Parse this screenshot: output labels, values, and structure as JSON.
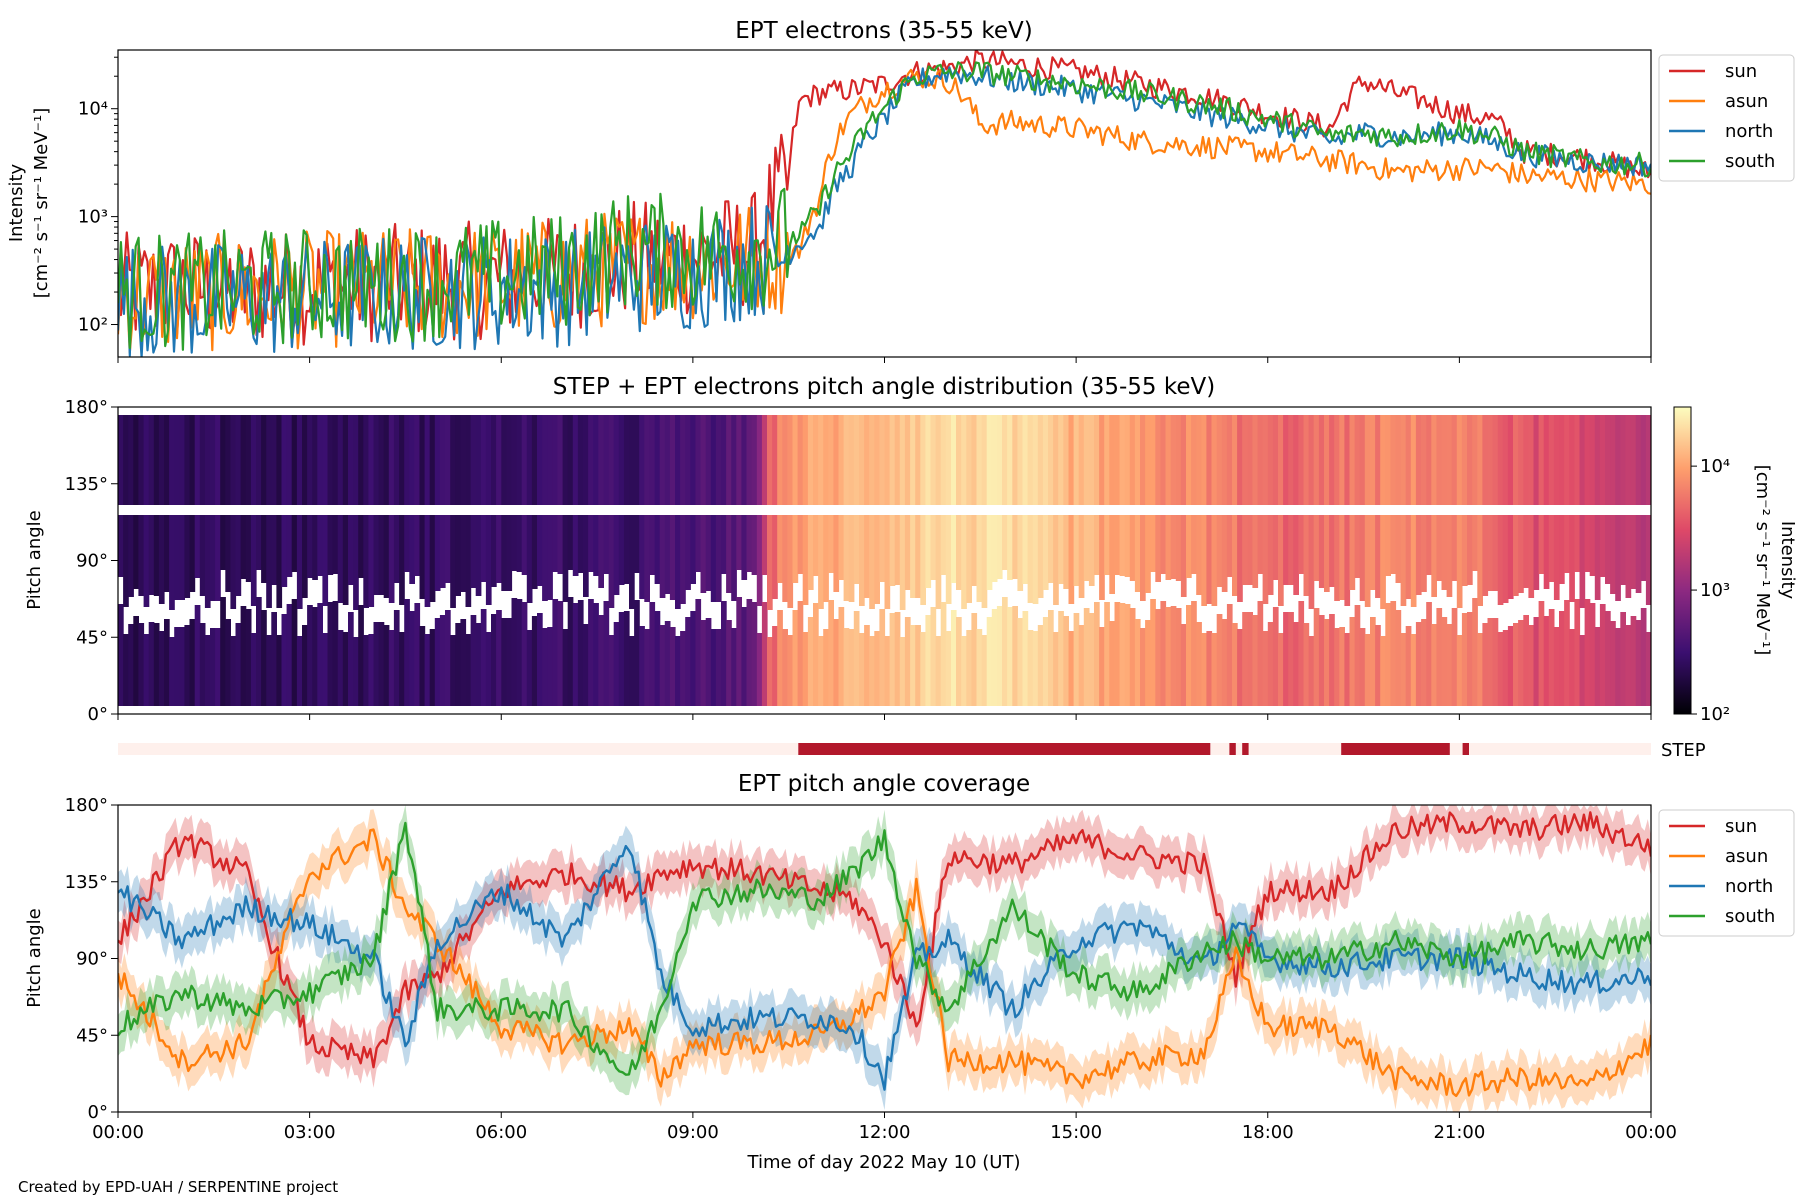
{
  "chart_data": [
    {
      "type": "line",
      "title": "EPT electrons (35-55 keV)",
      "ylabel_line1": "Intensity",
      "ylabel_line2": "[cm⁻² s⁻¹ sr⁻¹ MeV⁻¹]",
      "yscale": "log",
      "ylim": [
        50,
        35000
      ],
      "xlim_hours": [
        0,
        24
      ],
      "y_ticks": [
        "10²",
        "10³",
        "10⁴"
      ],
      "legend_position": "outside-right-top",
      "x_hours": [
        0,
        1,
        2,
        3,
        4,
        5,
        6,
        7,
        8,
        9,
        10,
        10.5,
        10.7,
        11,
        11.5,
        12,
        12.5,
        13,
        13.5,
        14,
        15,
        16,
        17,
        18,
        19,
        19.5,
        20,
        21,
        21.5,
        22,
        23,
        24
      ],
      "series": [
        {
          "name": "sun",
          "color": "#d62728",
          "values": [
            200,
            220,
            210,
            230,
            240,
            250,
            260,
            300,
            400,
            420,
            500,
            2000,
            12000,
            14000,
            15000,
            17000,
            22000,
            24000,
            28000,
            26000,
            22000,
            17000,
            13000,
            9000,
            6500,
            18000,
            14000,
            9000,
            8000,
            4000,
            3500,
            2500
          ]
        },
        {
          "name": "asun",
          "color": "#ff7f0e",
          "values": [
            180,
            190,
            200,
            210,
            220,
            230,
            250,
            280,
            350,
            380,
            400,
            450,
            500,
            1500,
            9000,
            15000,
            20000,
            18000,
            7000,
            7500,
            6500,
            5000,
            4500,
            4000,
            3300,
            3000,
            2600,
            2800,
            2800,
            2400,
            2200,
            2000
          ]
        },
        {
          "name": "north",
          "color": "#1f77b4",
          "values": [
            170,
            160,
            170,
            180,
            190,
            200,
            210,
            220,
            280,
            300,
            400,
            450,
            600,
            800,
            3000,
            8000,
            18000,
            22000,
            20000,
            18000,
            15000,
            12000,
            9000,
            7000,
            5000,
            6000,
            5500,
            6000,
            5000,
            3800,
            3200,
            3000
          ]
        },
        {
          "name": "south",
          "color": "#2ca02c",
          "values": [
            210,
            200,
            220,
            230,
            240,
            250,
            280,
            320,
            500,
            450,
            480,
            600,
            700,
            1200,
            4000,
            10000,
            20000,
            22000,
            22000,
            20000,
            17000,
            14000,
            11000,
            8000,
            5500,
            6000,
            5500,
            6500,
            5500,
            4000,
            3200,
            3000
          ]
        }
      ]
    },
    {
      "type": "heatmap",
      "title": "STEP + EPT electrons pitch angle distribution (35-55 keV)",
      "ylabel": "Pitch angle",
      "y_ticks": [
        "0°",
        "45°",
        "90°",
        "135°",
        "180°"
      ],
      "colorbar_label_line1": "Intensity",
      "colorbar_label_line2": "[cm⁻² s⁻¹ sr⁻¹ MeV⁻¹]",
      "colorbar_scale": "log",
      "colorbar_range": [
        100,
        30000
      ],
      "colorbar_ticks": [
        "10²",
        "10³",
        "10⁴"
      ],
      "colormap": "inferno-like",
      "x_hours": [
        0,
        2,
        4,
        6,
        8,
        10,
        10.5,
        11,
        12,
        13,
        14,
        15,
        16,
        17,
        18,
        19,
        20,
        21,
        22,
        23,
        24
      ],
      "intensity": [
        250,
        250,
        260,
        280,
        300,
        450,
        9000,
        10000,
        15000,
        20000,
        18000,
        12000,
        8000,
        7000,
        4500,
        5000,
        7000,
        6500,
        3500,
        2500,
        2000
      ]
    },
    {
      "type": "heatmap",
      "label": "STEP",
      "on_intervals_hours": [
        [
          10.65,
          17.1
        ],
        [
          17.4,
          17.5
        ],
        [
          17.6,
          17.7
        ],
        [
          19.15,
          20.85
        ],
        [
          21.05,
          21.15
        ]
      ]
    },
    {
      "type": "line",
      "title": "EPT pitch angle coverage",
      "ylabel": "Pitch angle",
      "y_ticks": [
        "0°",
        "45°",
        "90°",
        "135°",
        "180°"
      ],
      "ylim": [
        0,
        180
      ],
      "xlim_hours": [
        0,
        24
      ],
      "legend_position": "outside-right-top",
      "x_hours": [
        0,
        1,
        2,
        3,
        4,
        4.5,
        5,
        6,
        7,
        8,
        8.5,
        9,
        10,
        11,
        11.5,
        12,
        12.5,
        13,
        14,
        15,
        16,
        17,
        17.5,
        18,
        19,
        20,
        21,
        22,
        23,
        24
      ],
      "series": [
        {
          "name": "sun",
          "color": "#d62728",
          "values": [
            100,
            160,
            140,
            40,
            30,
            70,
            80,
            130,
            140,
            130,
            140,
            145,
            140,
            130,
            125,
            100,
            50,
            150,
            145,
            160,
            150,
            145,
            80,
            130,
            130,
            165,
            170,
            165,
            170,
            155
          ]
        },
        {
          "name": "asun",
          "color": "#ff7f0e",
          "values": [
            80,
            30,
            40,
            140,
            160,
            120,
            100,
            50,
            40,
            50,
            20,
            40,
            40,
            45,
            55,
            70,
            130,
            30,
            30,
            20,
            30,
            35,
            90,
            50,
            50,
            20,
            15,
            20,
            15,
            40
          ]
        },
        {
          "name": "north",
          "color": "#1f77b4",
          "values": [
            130,
            100,
            120,
            110,
            90,
            40,
            100,
            130,
            100,
            160,
            80,
            50,
            55,
            55,
            50,
            20,
            90,
            100,
            60,
            100,
            110,
            85,
            110,
            90,
            85,
            90,
            90,
            80,
            75,
            80
          ]
        },
        {
          "name": "south",
          "color": "#2ca02c",
          "values": [
            50,
            70,
            60,
            70,
            90,
            170,
            60,
            60,
            60,
            20,
            60,
            125,
            130,
            125,
            140,
            160,
            90,
            60,
            120,
            80,
            70,
            95,
            100,
            90,
            90,
            100,
            90,
            100,
            95,
            100
          ]
        }
      ]
    }
  ],
  "x_axis": {
    "tick_labels": [
      "00:00",
      "03:00",
      "06:00",
      "09:00",
      "12:00",
      "15:00",
      "18:00",
      "21:00",
      "00:00"
    ],
    "label": "Time of day 2022 May 10 (UT)"
  },
  "credit": "Created by EPD-UAH / SERPENTINE project"
}
